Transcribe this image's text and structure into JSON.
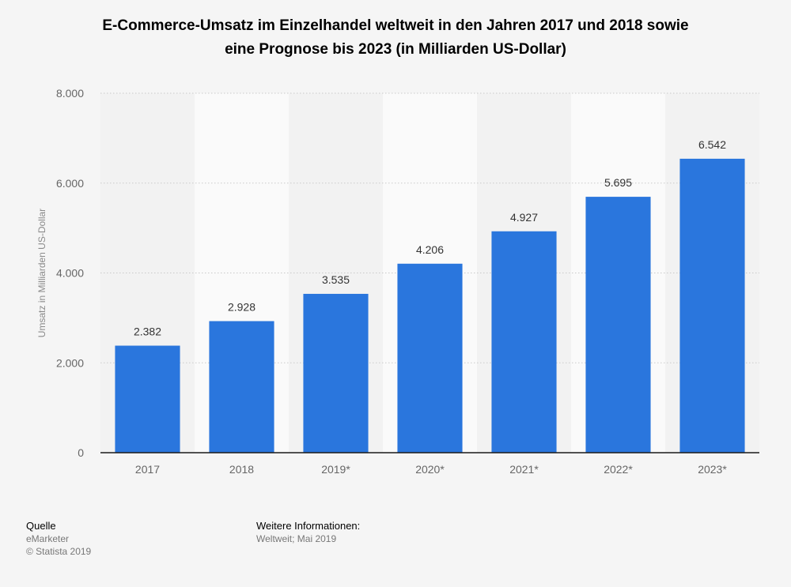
{
  "chart_data": {
    "type": "bar",
    "title": "E-Commerce-Umsatz im Einzelhandel weltweit in den Jahren 2017 und 2018 sowie eine Prognose bis 2023 (in Milliarden US-Dollar)",
    "title_lines": [
      "E-Commerce-Umsatz im Einzelhandel weltweit in den Jahren 2017 und 2018 sowie",
      "eine Prognose bis 2023 (in Milliarden US-Dollar)"
    ],
    "ylabel": "Umsatz in Milliarden US-Dollar",
    "xlabel": "",
    "categories": [
      "2017",
      "2018",
      "2019*",
      "2020*",
      "2021*",
      "2022*",
      "2023*"
    ],
    "values": [
      2382,
      2928,
      3535,
      4206,
      4927,
      5695,
      6542
    ],
    "value_labels": [
      "2.382",
      "2.928",
      "3.535",
      "4.206",
      "4.927",
      "5.695",
      "6.542"
    ],
    "ylim": [
      0,
      8000
    ],
    "yticks": [
      0,
      2000,
      4000,
      6000,
      8000
    ],
    "ytick_labels": [
      "0",
      "2.000",
      "4.000",
      "6.000",
      "8.000"
    ],
    "grid": true,
    "bar_color": "#2a76dd"
  },
  "footer": {
    "source_heading": "Quelle",
    "source_lines": [
      "eMarketer",
      "© Statista 2019"
    ],
    "info_heading": "Weitere Informationen:",
    "info_lines": [
      "Weltweit; Mai 2019"
    ]
  }
}
